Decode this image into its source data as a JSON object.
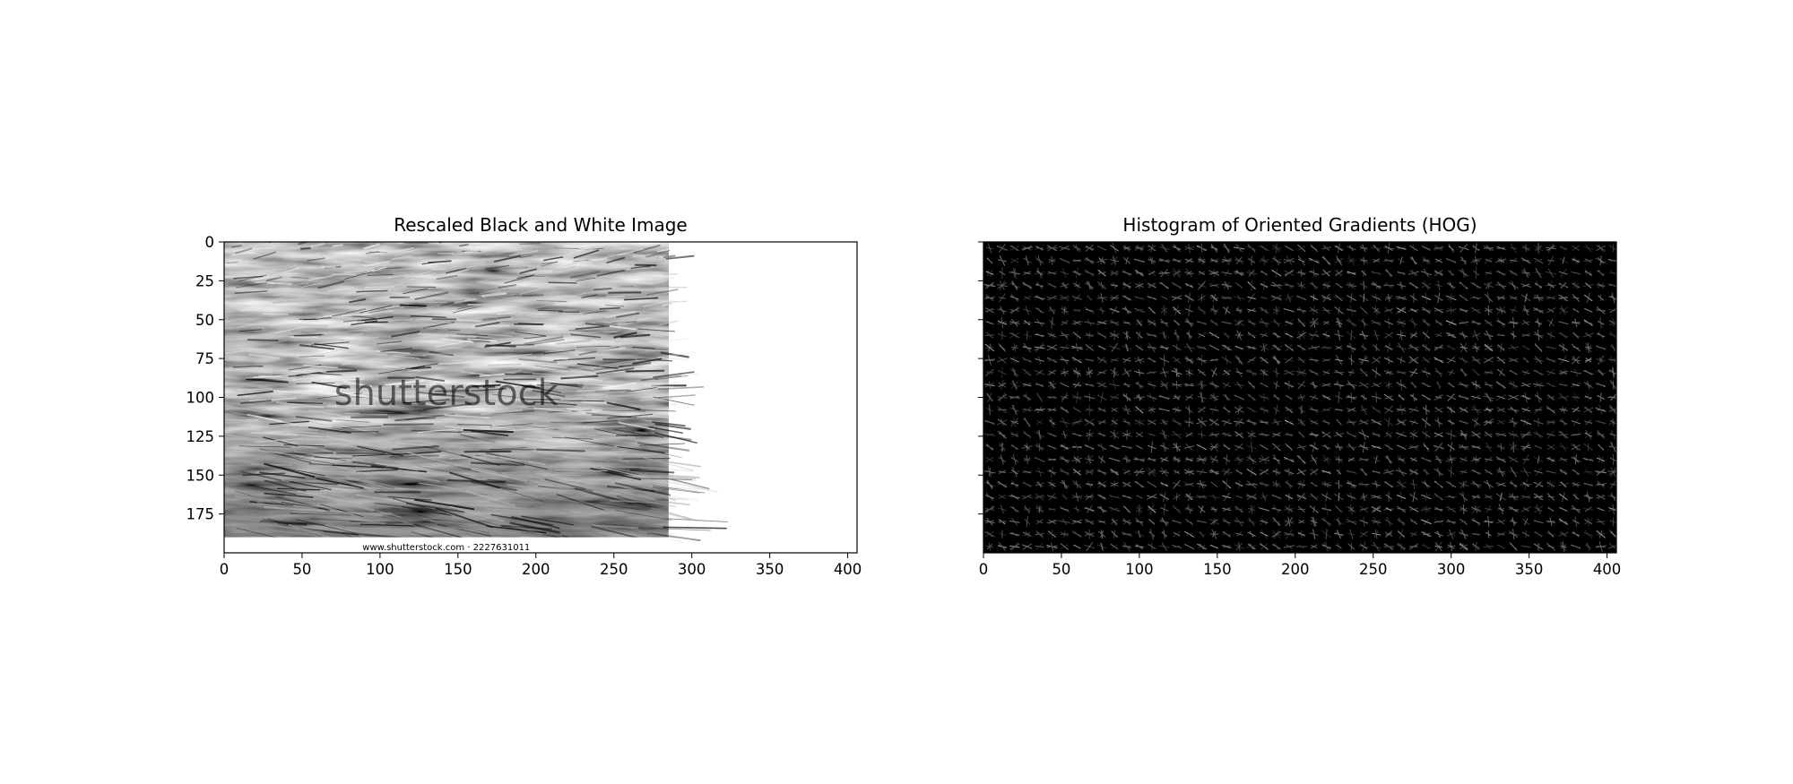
{
  "chart_data": [
    {
      "type": "image",
      "title": "Rescaled Black and White Image",
      "colormap": "gray",
      "xlim": [
        0,
        406
      ],
      "ylim": [
        200,
        0
      ],
      "xticks": [
        0,
        50,
        100,
        150,
        200,
        250,
        300,
        350,
        400
      ],
      "yticks": [
        0,
        25,
        50,
        75,
        100,
        125,
        150,
        175
      ],
      "image_extent": [
        0,
        285,
        0,
        200
      ],
      "photo_bottom": 190,
      "caption_strip": "www.shutterstock.com · 2227631011",
      "watermark": "shutterstock"
    },
    {
      "type": "image",
      "title": "Histogram of Oriented Gradients (HOG)",
      "colormap": "gray",
      "xlim": [
        0,
        406
      ],
      "ylim": [
        200,
        0
      ],
      "xticks": [
        0,
        50,
        100,
        150,
        200,
        250,
        300,
        350,
        400
      ],
      "yticks": [
        0,
        25,
        50,
        75,
        100,
        125,
        150,
        175
      ],
      "show_ytick_labels": false,
      "cell_size": 8
    }
  ]
}
